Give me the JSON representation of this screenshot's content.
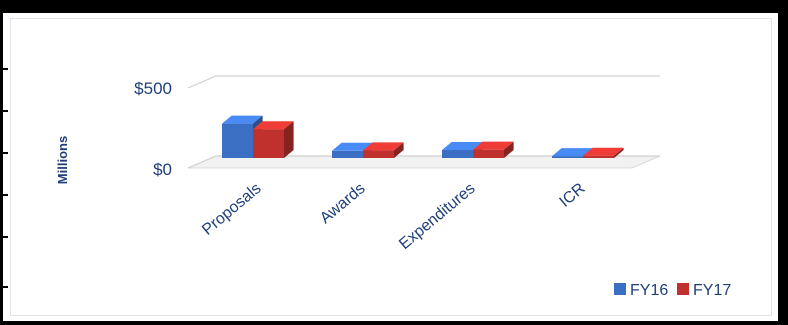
{
  "chart_data": {
    "type": "bar",
    "categories": [
      "Proposals",
      "Awards",
      "Expenditures",
      "ICR"
    ],
    "series": [
      {
        "name": "FY16",
        "values": [
          215,
          45,
          50,
          12
        ],
        "color": "#3a6fc4"
      },
      {
        "name": "FY17",
        "values": [
          180,
          48,
          52,
          14
        ],
        "color": "#c0302c"
      }
    ],
    "ylabel": "Millions",
    "ytick_labels": [
      "$0",
      "$500"
    ],
    "ylim": [
      0,
      500
    ],
    "grid": true,
    "legend_position": "bottom-right",
    "style": "3d-clustered-column"
  }
}
